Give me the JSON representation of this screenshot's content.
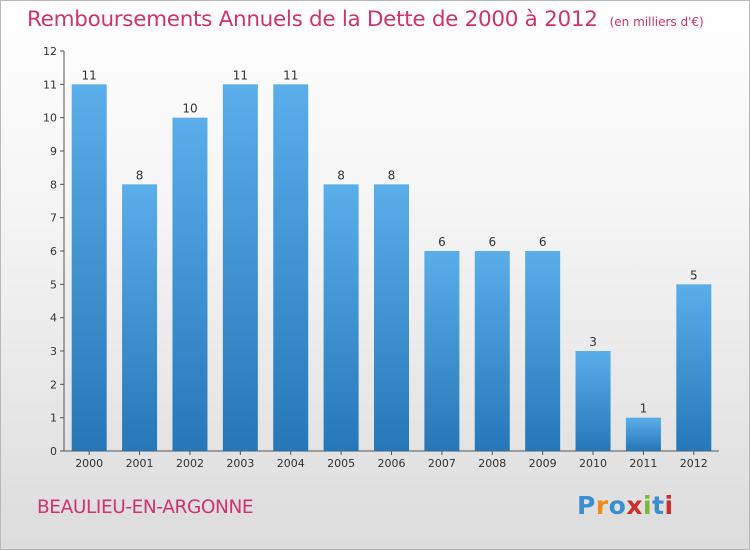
{
  "header": {
    "title": "Remboursements Annuels de la Dette de 2000 à 2012",
    "subtitle": "(en milliers d'€)"
  },
  "footer": {
    "commune": "BEAULIEU-EN-ARGONNE",
    "logo_text": "Proxiti"
  },
  "colors": {
    "bar_top": "#5aaeea",
    "bar_bottom": "#2677b8",
    "title": "#d0336e",
    "logo": [
      "#3a8fd0",
      "#f08a1c",
      "#3a8fd0",
      "#cc2e2e",
      "#7ab83a",
      "#3a8fd0",
      "#cc2e2e"
    ]
  },
  "chart_data": {
    "type": "bar",
    "categories": [
      "2000",
      "2001",
      "2002",
      "2003",
      "2004",
      "2005",
      "2006",
      "2007",
      "2008",
      "2009",
      "2010",
      "2011",
      "2012"
    ],
    "values": [
      11,
      8,
      10,
      11,
      11,
      8,
      8,
      6,
      6,
      6,
      3,
      1,
      5
    ],
    "title": "Remboursements Annuels de la Dette de 2000 à 2012",
    "subtitle": "(en milliers d'€)",
    "ylim": [
      0,
      12
    ],
    "yticks": [
      0,
      1,
      2,
      3,
      4,
      5,
      6,
      7,
      8,
      9,
      10,
      11,
      12
    ],
    "grid": false,
    "legend": "none",
    "data_labels": true
  }
}
